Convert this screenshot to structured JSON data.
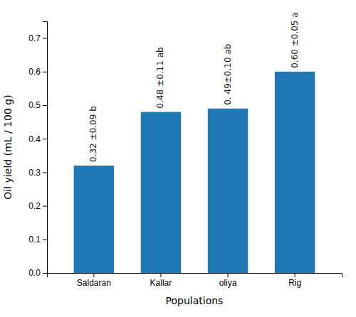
{
  "chart_data": {
    "type": "bar",
    "categories": [
      "Saldaran",
      "Kallar",
      "oliya",
      "Rig"
    ],
    "values": [
      0.32,
      0.48,
      0.49,
      0.6
    ],
    "data_labels": true,
    "value_labels": [
      "0.32 ±0.09 b",
      "0.48 ±0.11 ab",
      "0. 49±0.10 ab",
      "0.60 ±0.05 a"
    ],
    "x_label": "Populations",
    "y_label": "Oil yield (mL / 100 g)",
    "ylim": [
      0,
      0.75
    ],
    "yticks": [
      {
        "value": 0,
        "label": "0.0"
      },
      0.1,
      0.2,
      0.3,
      0.4,
      0.5,
      0.6,
      0.7
    ]
  }
}
